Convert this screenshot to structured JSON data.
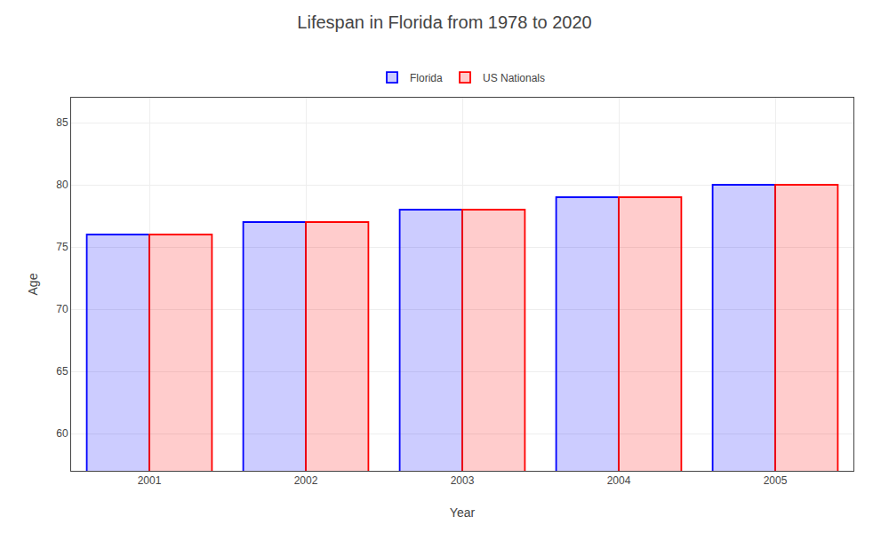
{
  "chart_data": {
    "type": "bar",
    "title": "Lifespan in Florida from 1978 to 2020",
    "xlabel": "Year",
    "ylabel": "Age",
    "categories": [
      2001,
      2002,
      2003,
      2004,
      2005
    ],
    "series": [
      {
        "name": "Florida",
        "color": "#0000ff",
        "values": [
          76.0,
          77.0,
          78.0,
          79.0,
          80.0
        ]
      },
      {
        "name": "US Nationals",
        "color": "#ff0000",
        "values": [
          76.0,
          77.0,
          78.0,
          79.0,
          80.0
        ]
      }
    ],
    "ylim": [
      57,
      87
    ],
    "yticks": [
      60,
      65,
      70,
      75,
      80,
      85
    ],
    "grid": true,
    "legend": "top"
  }
}
